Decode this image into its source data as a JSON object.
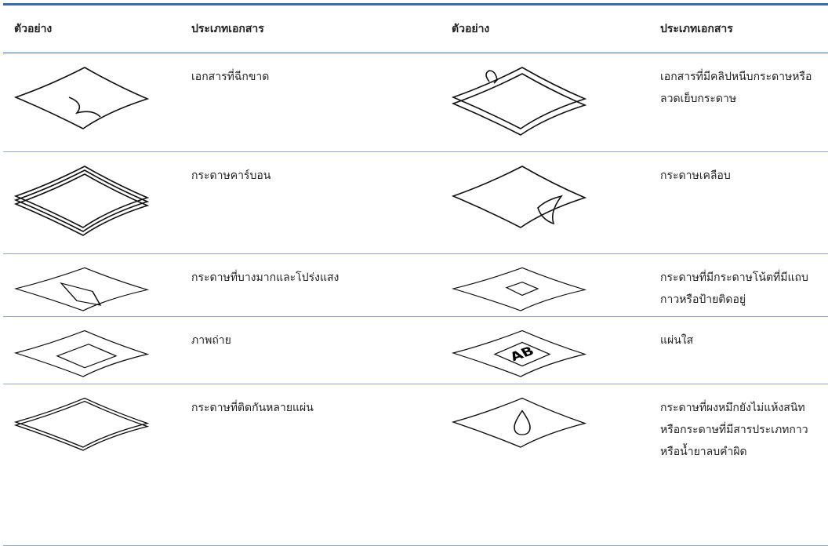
{
  "header": [
    "ตัวอย่าง",
    "ประเภทเอกสาร",
    "ตัวอย่าง",
    "ประเภทเอกสาร"
  ],
  "rows": [
    [
      "เอกสารที่ฉีกขาด",
      "เอกสารที่มีคลิปหนีบกระดาษหรือลวดเย็บกระดาษ"
    ],
    [
      "กระดาษคาร์บอน",
      "กระดาษเคลือบ"
    ],
    [
      "กระดาษที่บางมากและโปร่งแสง",
      "กระดาษที่มีกระดาษโน้ตที่มีแถบกาวหรือป้ายติดอยู่"
    ],
    [
      "ภาพถ่าย",
      "แผ่นใส"
    ],
    [
      "กระดาษที่ติดกันหลายแผ่น",
      "กระดาษที่ผงหมึกยังไม่แห้งสนิท หรือกระดาษที่มีสารประเภทกาวหรือน้ำยาลบคำผิด"
    ]
  ]
}
